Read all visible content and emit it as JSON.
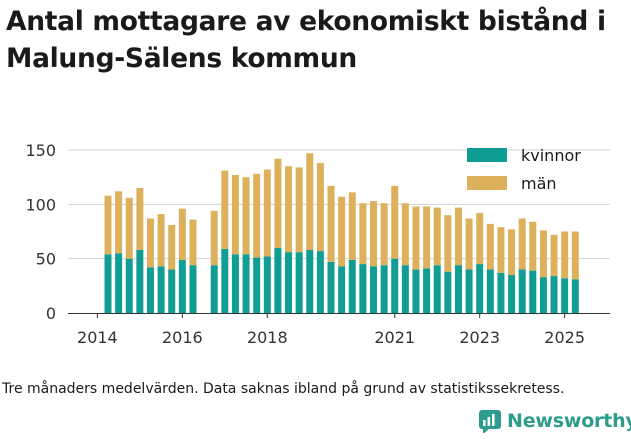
{
  "title": "Antal mottagare av ekonomiskt bistånd i Malung-Sälens kommun",
  "footnote": "Tre månaders medelvärden. Data saknas ibland på grund av statistikssekretess.",
  "brand": "Newsworthy",
  "colors": {
    "kvinnor": "#109d93",
    "man": "#ddb15b",
    "brand": "#2d9c8e",
    "grid": "#d3d3d3"
  },
  "chart_data": {
    "type": "bar",
    "stacked": true,
    "x_label_ticks": [
      "2014",
      "2016",
      "2018",
      "2021",
      "2023",
      "2025"
    ],
    "y_ticks": [
      0,
      50,
      100,
      150
    ],
    "ylim": [
      0,
      155
    ],
    "legend": [
      "kvinnor",
      "män"
    ],
    "legend_position": "top-right",
    "grid": "horizontal",
    "categories": [
      "2014-Q2",
      "2014-Q3",
      "2014-Q4",
      "2015-Q1",
      "2015-Q2",
      "2015-Q3",
      "2015-Q4",
      "2016-Q1",
      "2016-Q2",
      "2016-Q3",
      "2016-Q4",
      "2017-Q1",
      "2017-Q2",
      "2017-Q3",
      "2017-Q4",
      "2018-Q1",
      "2018-Q2",
      "2018-Q3",
      "2018-Q4",
      "2019-Q1",
      "2019-Q2",
      "2019-Q3",
      "2019-Q4",
      "2020-Q1",
      "2020-Q2",
      "2020-Q3",
      "2020-Q4",
      "2021-Q1",
      "2021-Q2",
      "2021-Q3",
      "2021-Q4",
      "2022-Q1",
      "2022-Q2",
      "2022-Q3",
      "2022-Q4",
      "2023-Q1",
      "2023-Q2",
      "2023-Q3",
      "2023-Q4",
      "2024-Q1",
      "2024-Q2",
      "2024-Q3",
      "2024-Q4",
      "2025-Q1",
      "2025-Q2",
      "2025-Q3"
    ],
    "series": [
      {
        "name": "kvinnor",
        "values": [
          54,
          55,
          50,
          58,
          42,
          43,
          40,
          49,
          44,
          null,
          44,
          59,
          54,
          54,
          51,
          52,
          60,
          56,
          56,
          58,
          57,
          47,
          43,
          49,
          45,
          43,
          44,
          50,
          44,
          40,
          41,
          44,
          38,
          44,
          40,
          45,
          40,
          37,
          35,
          40,
          39,
          33,
          34,
          32,
          31,
          null
        ]
      },
      {
        "name": "män",
        "values": [
          54,
          57,
          56,
          57,
          45,
          48,
          41,
          47,
          42,
          null,
          50,
          72,
          73,
          71,
          77,
          80,
          82,
          79,
          78,
          89,
          81,
          70,
          64,
          62,
          56,
          60,
          57,
          67,
          57,
          58,
          57,
          53,
          52,
          53,
          47,
          47,
          42,
          42,
          42,
          47,
          45,
          43,
          38,
          43,
          44,
          null
        ]
      }
    ]
  }
}
